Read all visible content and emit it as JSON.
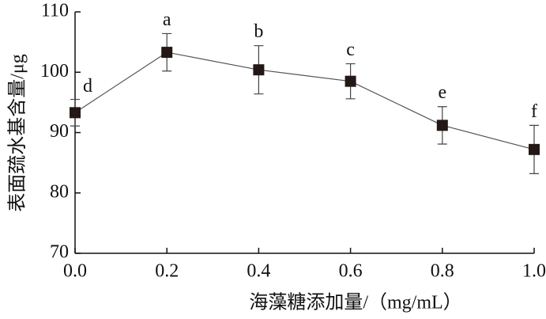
{
  "chart_data": {
    "type": "line",
    "x_label": "海藻糖添加量/（mg/mL）",
    "y_label": "表面巯水基含量/μg",
    "x": [
      0,
      0.2,
      0.4,
      0.6,
      0.8,
      1.0
    ],
    "values": [
      93.3,
      103.3,
      100.4,
      98.5,
      91.2,
      87.2
    ],
    "errors": [
      2.2,
      3.1,
      4.0,
      2.9,
      3.1,
      4.0
    ],
    "point_labels": [
      "d",
      "a",
      "b",
      "c",
      "e",
      "f"
    ],
    "color": "#231815",
    "line_color": "#555555",
    "xlim": [
      0,
      1.0
    ],
    "xticks": [
      {
        "value": 0,
        "label": "0.0"
      },
      {
        "value": 0.2,
        "label": "0.2"
      },
      {
        "value": 0.4,
        "label": "0.4"
      },
      {
        "value": 0.6,
        "label": "0.6"
      },
      {
        "value": 0.8,
        "label": "0.8"
      },
      {
        "value": 1.0,
        "label": "1.0"
      }
    ],
    "ylim": [
      70,
      110
    ],
    "yticks": [
      70,
      80,
      90,
      100,
      110
    ]
  }
}
